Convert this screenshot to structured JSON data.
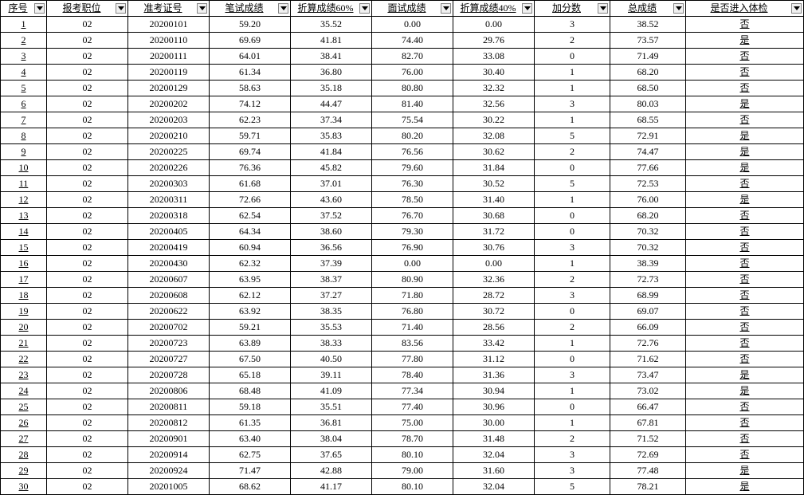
{
  "table": {
    "columns": [
      {
        "label": "序号",
        "class": "col-seq"
      },
      {
        "label": "报考职位",
        "class": "col-pos"
      },
      {
        "label": "准考证号",
        "class": "col-exam"
      },
      {
        "label": "笔试成绩",
        "class": "col-written"
      },
      {
        "label": "折算成绩60%",
        "class": "col-conv60"
      },
      {
        "label": "面试成绩",
        "class": "col-interview"
      },
      {
        "label": "折算成绩40%",
        "class": "col-conv40"
      },
      {
        "label": "加分数",
        "class": "col-bonus"
      },
      {
        "label": "总成绩",
        "class": "col-total"
      },
      {
        "label": "是否进入体检",
        "class": "col-pass"
      }
    ],
    "rows": [
      [
        "1",
        "02",
        "20200101",
        "59.20",
        "35.52",
        "0.00",
        "0.00",
        "3",
        "38.52",
        "否"
      ],
      [
        "2",
        "02",
        "20200110",
        "69.69",
        "41.81",
        "74.40",
        "29.76",
        "2",
        "73.57",
        "是"
      ],
      [
        "3",
        "02",
        "20200111",
        "64.01",
        "38.41",
        "82.70",
        "33.08",
        "0",
        "71.49",
        "否"
      ],
      [
        "4",
        "02",
        "20200119",
        "61.34",
        "36.80",
        "76.00",
        "30.40",
        "1",
        "68.20",
        "否"
      ],
      [
        "5",
        "02",
        "20200129",
        "58.63",
        "35.18",
        "80.80",
        "32.32",
        "1",
        "68.50",
        "否"
      ],
      [
        "6",
        "02",
        "20200202",
        "74.12",
        "44.47",
        "81.40",
        "32.56",
        "3",
        "80.03",
        "是"
      ],
      [
        "7",
        "02",
        "20200203",
        "62.23",
        "37.34",
        "75.54",
        "30.22",
        "1",
        "68.55",
        "否"
      ],
      [
        "8",
        "02",
        "20200210",
        "59.71",
        "35.83",
        "80.20",
        "32.08",
        "5",
        "72.91",
        "是"
      ],
      [
        "9",
        "02",
        "20200225",
        "69.74",
        "41.84",
        "76.56",
        "30.62",
        "2",
        "74.47",
        "是"
      ],
      [
        "10",
        "02",
        "20200226",
        "76.36",
        "45.82",
        "79.60",
        "31.84",
        "0",
        "77.66",
        "是"
      ],
      [
        "11",
        "02",
        "20200303",
        "61.68",
        "37.01",
        "76.30",
        "30.52",
        "5",
        "72.53",
        "否"
      ],
      [
        "12",
        "02",
        "20200311",
        "72.66",
        "43.60",
        "78.50",
        "31.40",
        "1",
        "76.00",
        "是"
      ],
      [
        "13",
        "02",
        "20200318",
        "62.54",
        "37.52",
        "76.70",
        "30.68",
        "0",
        "68.20",
        "否"
      ],
      [
        "14",
        "02",
        "20200405",
        "64.34",
        "38.60",
        "79.30",
        "31.72",
        "0",
        "70.32",
        "否"
      ],
      [
        "15",
        "02",
        "20200419",
        "60.94",
        "36.56",
        "76.90",
        "30.76",
        "3",
        "70.32",
        "否"
      ],
      [
        "16",
        "02",
        "20200430",
        "62.32",
        "37.39",
        "0.00",
        "0.00",
        "1",
        "38.39",
        "否"
      ],
      [
        "17",
        "02",
        "20200607",
        "63.95",
        "38.37",
        "80.90",
        "32.36",
        "2",
        "72.73",
        "否"
      ],
      [
        "18",
        "02",
        "20200608",
        "62.12",
        "37.27",
        "71.80",
        "28.72",
        "3",
        "68.99",
        "否"
      ],
      [
        "19",
        "02",
        "20200622",
        "63.92",
        "38.35",
        "76.80",
        "30.72",
        "0",
        "69.07",
        "否"
      ],
      [
        "20",
        "02",
        "20200702",
        "59.21",
        "35.53",
        "71.40",
        "28.56",
        "2",
        "66.09",
        "否"
      ],
      [
        "21",
        "02",
        "20200723",
        "63.89",
        "38.33",
        "83.56",
        "33.42",
        "1",
        "72.76",
        "否"
      ],
      [
        "22",
        "02",
        "20200727",
        "67.50",
        "40.50",
        "77.80",
        "31.12",
        "0",
        "71.62",
        "否"
      ],
      [
        "23",
        "02",
        "20200728",
        "65.18",
        "39.11",
        "78.40",
        "31.36",
        "3",
        "73.47",
        "是"
      ],
      [
        "24",
        "02",
        "20200806",
        "68.48",
        "41.09",
        "77.34",
        "30.94",
        "1",
        "73.02",
        "是"
      ],
      [
        "25",
        "02",
        "20200811",
        "59.18",
        "35.51",
        "77.40",
        "30.96",
        "0",
        "66.47",
        "否"
      ],
      [
        "26",
        "02",
        "20200812",
        "61.35",
        "36.81",
        "75.00",
        "30.00",
        "1",
        "67.81",
        "否"
      ],
      [
        "27",
        "02",
        "20200901",
        "63.40",
        "38.04",
        "78.70",
        "31.48",
        "2",
        "71.52",
        "否"
      ],
      [
        "28",
        "02",
        "20200914",
        "62.75",
        "37.65",
        "80.10",
        "32.04",
        "3",
        "72.69",
        "否"
      ],
      [
        "29",
        "02",
        "20200924",
        "71.47",
        "42.88",
        "79.00",
        "31.60",
        "3",
        "77.48",
        "是"
      ],
      [
        "30",
        "02",
        "20201005",
        "68.62",
        "41.17",
        "80.10",
        "32.04",
        "5",
        "78.21",
        "是"
      ]
    ]
  }
}
